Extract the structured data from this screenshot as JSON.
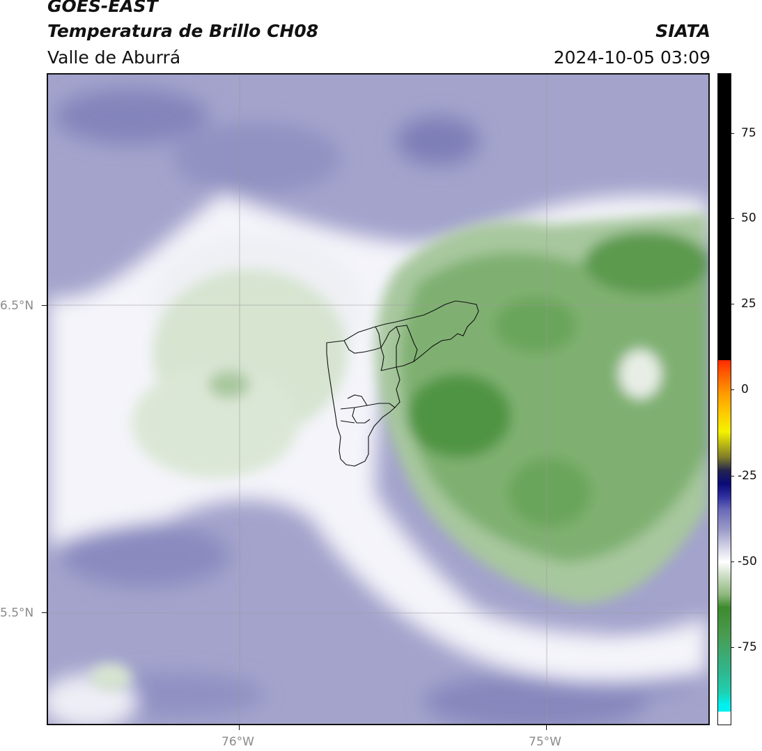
{
  "header": {
    "satellite": "GOES-EAST",
    "product": "Temperatura de Brillo CH08",
    "region": "Valle de Aburrá",
    "org": "SIATA",
    "datetime": "2024-10-05 03:09"
  },
  "map": {
    "lat_labels": [
      "6.5°N",
      "5.5°N"
    ],
    "lon_labels": [
      "76°W",
      "75°W"
    ]
  },
  "colorbar": {
    "ticks": [
      "75",
      "50",
      "25",
      "0",
      "-25",
      "-50",
      "-75"
    ],
    "colors": {
      "black": "#000000",
      "red": "#ff2a00",
      "orange": "#ff9800",
      "yellow": "#f5f200",
      "olive": "#7c7a2a",
      "navy": "#0a0a78",
      "lavender": "#9a9ac8",
      "white": "#ffffff",
      "green": "#3e8a2e",
      "teal": "#1fd0b0",
      "cyan": "#00f0f0"
    }
  }
}
